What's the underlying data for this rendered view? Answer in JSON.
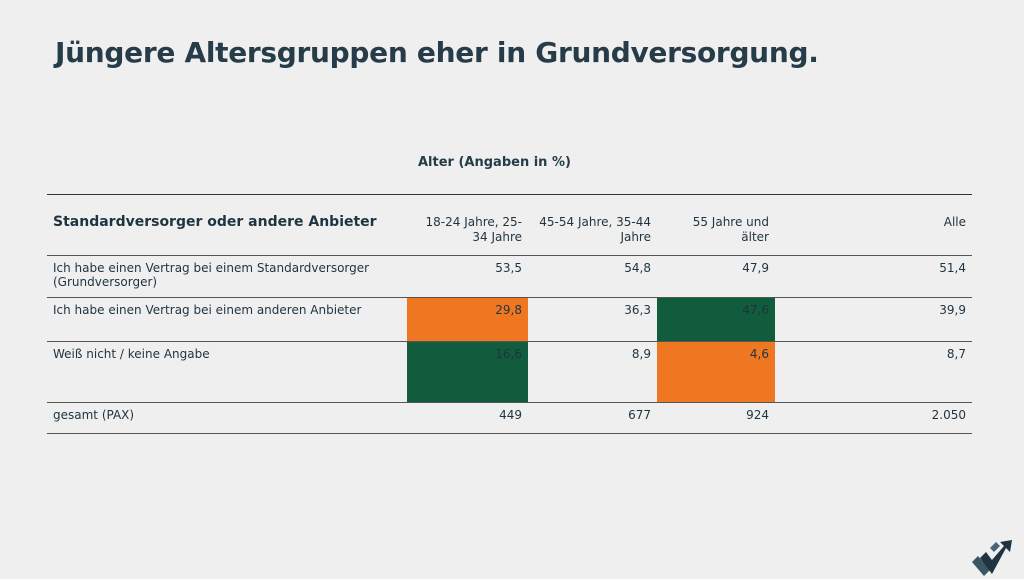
{
  "title": "Jüngere Altersgruppen eher in Grundversorgung.",
  "subtitle": "Alter  (Angaben in %)",
  "colors": {
    "orange": "#f07722",
    "green": "#115c3c",
    "text": "#263c48"
  },
  "table": {
    "header": [
      "Standardversorger oder andere Anbieter",
      "18-24 Jahre, 25-34 Jahre",
      "45-54 Jahre, 35-44 Jahre",
      "55 Jahre und älter",
      "Alle"
    ],
    "rows": [
      {
        "label": "Ich habe einen Vertrag bei einem Standardversorger (Grundversorger)",
        "values": [
          "53,5",
          "54,8",
          "47,9",
          "51,4"
        ],
        "highlight": [
          "",
          "",
          "",
          ""
        ]
      },
      {
        "label": "Ich habe einen Vertrag bei einem anderen Anbieter",
        "values": [
          "29,8",
          "36,3",
          "47,6",
          "39,9"
        ],
        "highlight": [
          "orange",
          "",
          "green",
          ""
        ]
      },
      {
        "label": "Weiß nicht / keine Angabe",
        "values": [
          "16,6",
          "8,9",
          "4,6",
          "8,7"
        ],
        "highlight": [
          "green",
          "",
          "orange",
          ""
        ]
      },
      {
        "label": "gesamt (PAX)",
        "values": [
          "449",
          "677",
          "924",
          "2.050"
        ],
        "highlight": [
          "",
          "",
          "",
          ""
        ]
      }
    ]
  },
  "logo": {
    "icon": "checkmark-arrow-logo"
  }
}
